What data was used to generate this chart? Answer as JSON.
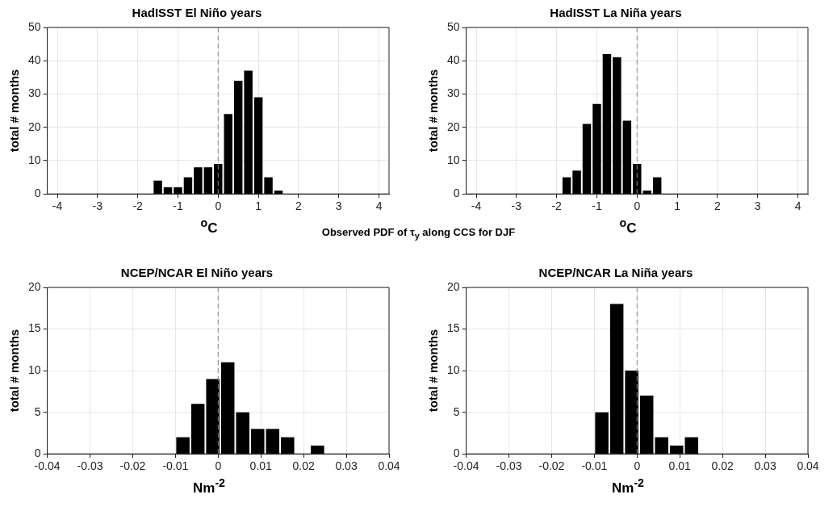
{
  "chart_data": [
    {
      "type": "histogram",
      "title": "HadISST El Niño years",
      "xlabel": "$^{o}$C",
      "ylabel": "total # months",
      "annotations": [
        "Observed PDF of τ$_{y}$ along CCS for DJF"
      ],
      "bins": [
        -1.625,
        -1.375,
        -1.125,
        -0.875,
        -0.625,
        -0.375,
        -0.125,
        0.125,
        0.375,
        0.625,
        0.875,
        1.125,
        1.375,
        1.625
      ],
      "values": [
        4,
        2,
        2,
        5,
        8,
        8,
        9,
        24,
        34,
        37,
        29,
        5,
        1
      ],
      "color": "#000000",
      "xlim": [
        -4.25,
        4.25
      ],
      "xticks": [
        -4,
        -3,
        -2,
        -1,
        0,
        1,
        2,
        3,
        4
      ],
      "ylim": [
        0,
        50
      ],
      "yticks": [
        0,
        10,
        20,
        30,
        40,
        50
      ],
      "grid": true,
      "ref_lines": [
        {
          "axis": "x",
          "value": 0,
          "color": "#888888",
          "line_style": "dashed"
        }
      ]
    },
    {
      "type": "histogram",
      "title": "HadISST La Niña years",
      "xlabel": "$^{o}$C",
      "ylabel": "total # months",
      "bins": [
        -1.875,
        -1.625,
        -1.375,
        -1.125,
        -0.875,
        -0.625,
        -0.375,
        -0.125,
        0.125,
        0.375,
        0.625
      ],
      "values": [
        5,
        7,
        21,
        27,
        42,
        41,
        22,
        9,
        1,
        5
      ],
      "color": "#000000",
      "xlim": [
        -4.25,
        4.25
      ],
      "xticks": [
        -4,
        -3,
        -2,
        -1,
        0,
        1,
        2,
        3,
        4
      ],
      "ylim": [
        0,
        50
      ],
      "yticks": [
        0,
        10,
        20,
        30,
        40,
        50
      ],
      "grid": true,
      "ref_lines": [
        {
          "axis": "x",
          "value": 0,
          "color": "#888888",
          "line_style": "dashed"
        }
      ]
    },
    {
      "type": "histogram",
      "title": "NCEP/NCAR El Niño years",
      "xlabel": "Nm$^{-2}$",
      "ylabel": "total # months",
      "bins": [
        -0.01,
        -0.0065,
        -0.003,
        0.0005,
        0.004,
        0.0075,
        0.011,
        0.0145,
        0.018,
        0.0215,
        0.025
      ],
      "values": [
        2,
        6,
        9,
        11,
        5,
        3,
        3,
        2,
        0,
        1
      ],
      "color": "#000000",
      "xlim": [
        -0.04,
        0.04
      ],
      "xticks": [
        -0.04,
        -0.03,
        -0.02,
        -0.01,
        0,
        0.01,
        0.02,
        0.03,
        0.04
      ],
      "ylim": [
        0,
        20
      ],
      "yticks": [
        0,
        5,
        10,
        15,
        20
      ],
      "grid": true,
      "ref_lines": [
        {
          "axis": "x",
          "value": 0,
          "color": "#888888",
          "line_style": "dashed"
        }
      ]
    },
    {
      "type": "histogram",
      "title": "NCEP/NCAR La Niña years",
      "xlabel": "Nm$^{-2}$",
      "ylabel": "total # months",
      "bins": [
        -0.01,
        -0.0065,
        -0.003,
        0.0005,
        0.004,
        0.0075,
        0.011,
        0.0145
      ],
      "values": [
        5,
        18,
        10,
        7,
        2,
        1,
        2
      ],
      "color": "#000000",
      "xlim": [
        -0.04,
        0.04
      ],
      "xticks": [
        -0.04,
        -0.03,
        -0.02,
        -0.01,
        0,
        0.01,
        0.02,
        0.03,
        0.04
      ],
      "ylim": [
        0,
        20
      ],
      "yticks": [
        0,
        5,
        10,
        15,
        20
      ],
      "grid": true,
      "ref_lines": [
        {
          "axis": "x",
          "value": 0,
          "color": "#888888",
          "line_style": "dashed"
        }
      ]
    }
  ]
}
